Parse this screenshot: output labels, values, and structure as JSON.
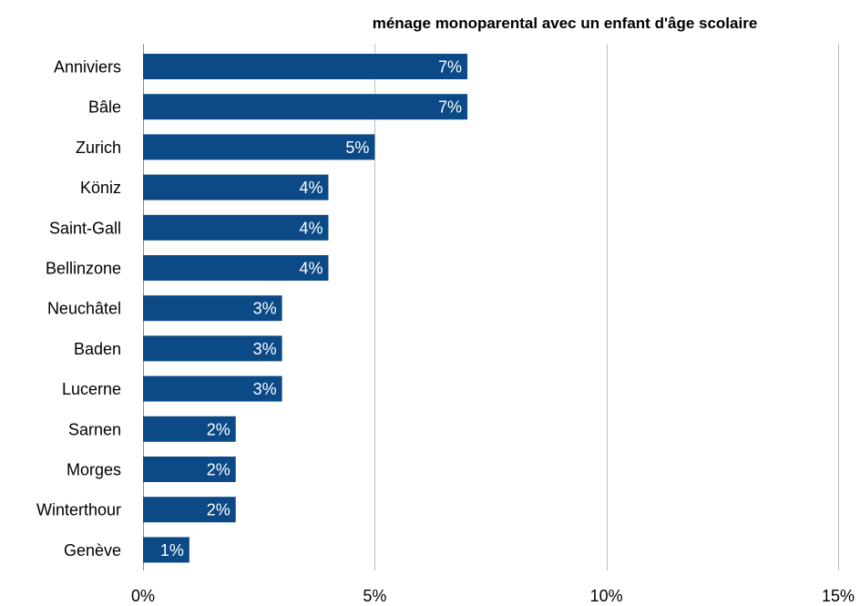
{
  "chart_data": {
    "type": "bar",
    "orientation": "horizontal",
    "title": "ménage monoparental avec un enfant d'âge scolaire",
    "categories": [
      "Anniviers",
      "Bâle",
      "Zurich",
      "Köniz",
      "Saint-Gall",
      "Bellinzone",
      "Neuchâtel",
      "Baden",
      "Lucerne",
      "Sarnen",
      "Morges",
      "Winterthour",
      "Genève"
    ],
    "values": [
      7,
      7,
      5,
      4,
      4,
      4,
      3,
      3,
      3,
      2,
      2,
      2,
      1
    ],
    "data_labels": [
      "7%",
      "7%",
      "5%",
      "4%",
      "4%",
      "4%",
      "3%",
      "3%",
      "3%",
      "2%",
      "2%",
      "2%",
      "1%"
    ],
    "xlim": [
      0,
      15
    ],
    "x_ticks": [
      0,
      5,
      10,
      15
    ],
    "x_tick_labels": [
      "0%",
      "5%",
      "10%",
      "15%"
    ],
    "xlabel": "",
    "ylabel": "",
    "grid": "vertical",
    "legend": "none",
    "bar_color": "#0b4a86",
    "grid_color": "#bfbfbf",
    "label_color": "#ffffff"
  }
}
